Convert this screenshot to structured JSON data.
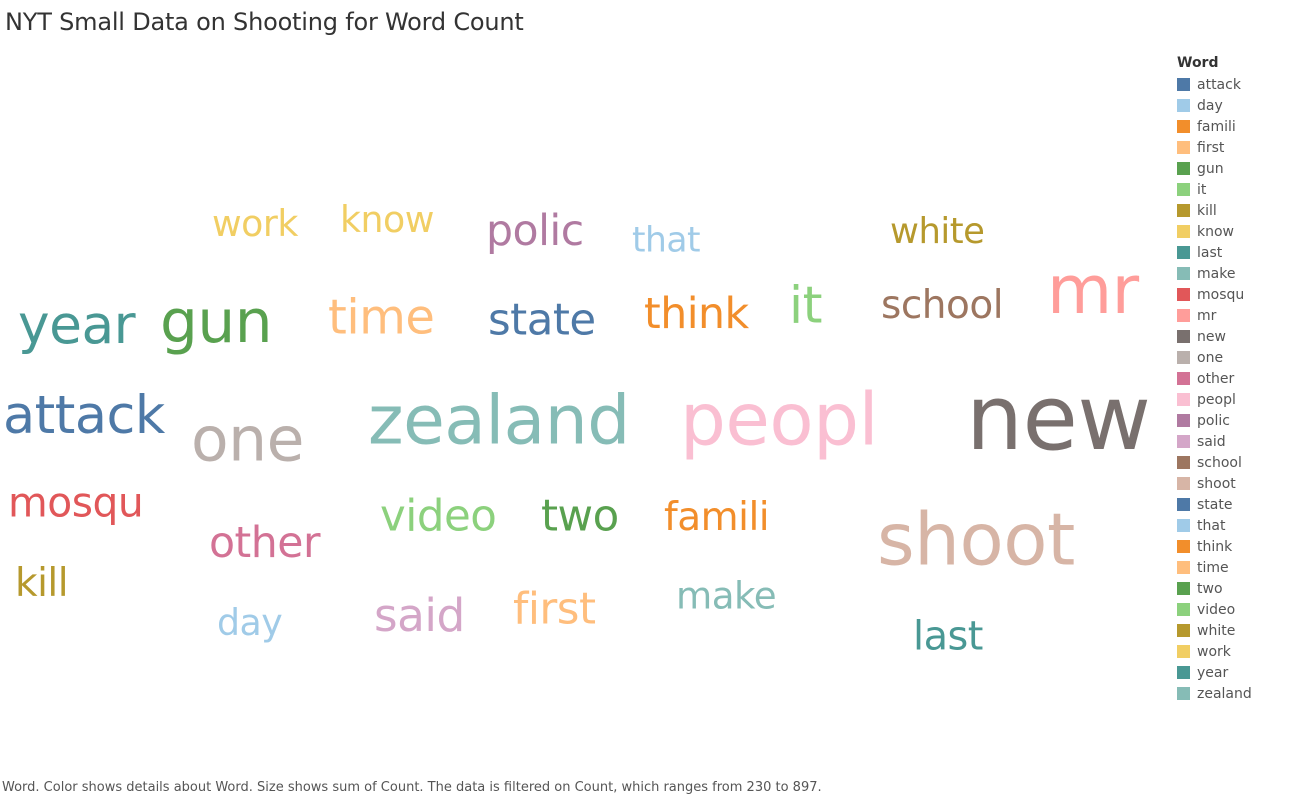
{
  "title": "NYT Small Data on Shooting for Word Count",
  "caption": "Word.  Color shows details about Word.  Size shows sum of Count. The data is filtered on Count, which ranges from 230 to 897.",
  "chart_data": {
    "type": "word_cloud",
    "title": "NYT Small Data on Shooting for Word Count",
    "count_range": [
      230,
      897
    ],
    "legend_title": "Word",
    "legend_placement": "right",
    "words": [
      {
        "word": "attack",
        "count": 480,
        "color": "#4e79a7"
      },
      {
        "word": "day",
        "count": 300,
        "color": "#a0cbe8"
      },
      {
        "word": "famili",
        "count": 330,
        "color": "#f28e2b"
      },
      {
        "word": "first",
        "count": 380,
        "color": "#ffbe7d"
      },
      {
        "word": "gun",
        "count": 560,
        "color": "#59a14f"
      },
      {
        "word": "it",
        "count": 460,
        "color": "#8cd17d"
      },
      {
        "word": "kill",
        "count": 330,
        "color": "#b6992d"
      },
      {
        "word": "know",
        "count": 300,
        "color": "#f1ce63"
      },
      {
        "word": "last",
        "count": 340,
        "color": "#499894"
      },
      {
        "word": "make",
        "count": 310,
        "color": "#86bcb6"
      },
      {
        "word": "mosqu",
        "count": 350,
        "color": "#e15759"
      },
      {
        "word": "mr",
        "count": 640,
        "color": "#ff9d9a"
      },
      {
        "word": "new",
        "count": 897,
        "color": "#79706e"
      },
      {
        "word": "one",
        "count": 580,
        "color": "#bab0ac"
      },
      {
        "word": "other",
        "count": 370,
        "color": "#d37295"
      },
      {
        "word": "peopl",
        "count": 700,
        "color": "#fabfd2"
      },
      {
        "word": "polic",
        "count": 370,
        "color": "#b07aa1"
      },
      {
        "word": "said",
        "count": 400,
        "color": "#d4a6c8"
      },
      {
        "word": "school",
        "count": 330,
        "color": "#9d7660"
      },
      {
        "word": "shoot",
        "count": 700,
        "color": "#d7b5a6"
      },
      {
        "word": "state",
        "count": 380,
        "color": "#4e79a7"
      },
      {
        "word": "that",
        "count": 280,
        "color": "#a0cbe8"
      },
      {
        "word": "think",
        "count": 370,
        "color": "#f28e2b"
      },
      {
        "word": "time",
        "count": 430,
        "color": "#ffbe7d"
      },
      {
        "word": "two",
        "count": 380,
        "color": "#59a14f"
      },
      {
        "word": "video",
        "count": 380,
        "color": "#8cd17d"
      },
      {
        "word": "white",
        "count": 290,
        "color": "#b6992d"
      },
      {
        "word": "work",
        "count": 300,
        "color": "#f1ce63"
      },
      {
        "word": "year",
        "count": 490,
        "color": "#499894"
      },
      {
        "word": "zealand",
        "count": 650,
        "color": "#86bcb6"
      }
    ]
  }
}
